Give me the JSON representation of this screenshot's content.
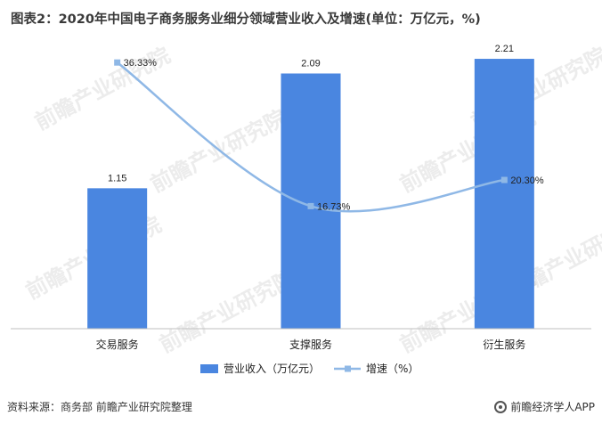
{
  "title": "图表2：2020年中国电子商务服务业细分领域营业收入及增速(单位：万亿元，%)",
  "footer": {
    "source": "资料来源：商务部 前瞻产业研究院整理",
    "app": "前瞻经济学人APP"
  },
  "watermark": {
    "text": "前瞻产业研究院"
  },
  "chart_data": {
    "type": "bar",
    "categories": [
      "交易服务",
      "支撑服务",
      "衍生服务"
    ],
    "series": [
      {
        "name": "营业收入（万亿元）",
        "type": "bar",
        "axis": "left",
        "values": [
          1.15,
          2.09,
          2.21
        ],
        "labels": [
          "1.15",
          "2.09",
          "2.21"
        ],
        "color": "#4a86e0"
      },
      {
        "name": "增速（%）",
        "type": "line",
        "axis": "right",
        "values": [
          36.33,
          16.73,
          20.3
        ],
        "labels": [
          "36.33%",
          "16.73%",
          "20.30%"
        ],
        "color": "#8fb8e6"
      }
    ],
    "ylim": [
      0,
      2.4
    ],
    "y2lim": [
      0,
      40
    ],
    "grid": false,
    "legend": "bottom"
  }
}
